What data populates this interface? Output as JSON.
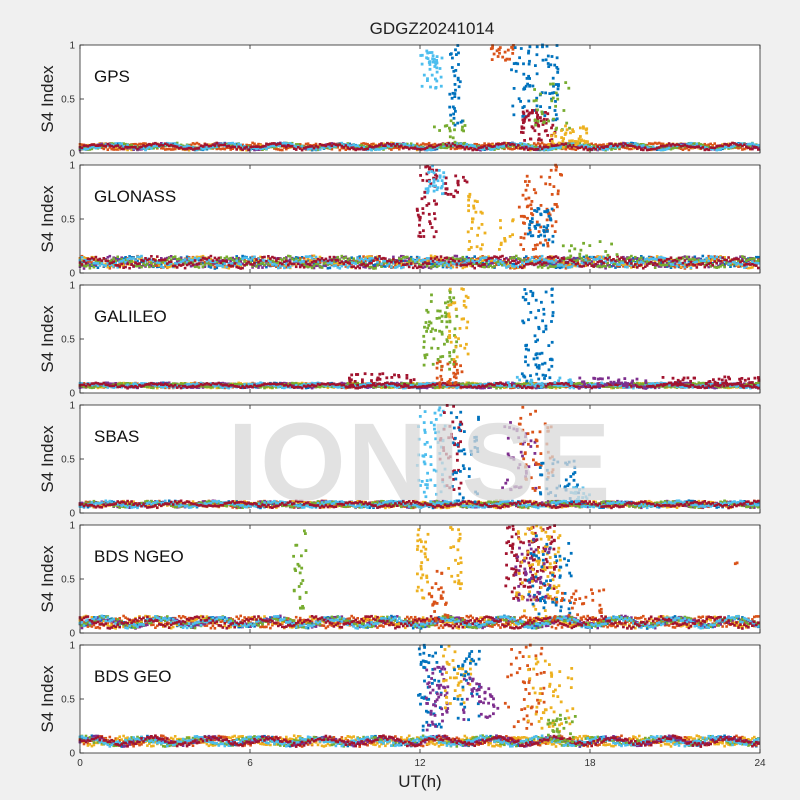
{
  "figure": {
    "title": "GDGZ20241014",
    "watermark": "IONISE",
    "xlabel": "UT(h)",
    "ylabel": "S4 Index",
    "xticks": [
      "0",
      "6",
      "12",
      "18",
      "24"
    ],
    "yticks": [
      "0",
      "0.5",
      "1"
    ]
  },
  "colors": {
    "background": "#f0f0f0",
    "axes": "#ffffff",
    "series": [
      "#0072bd",
      "#d95319",
      "#edb120",
      "#7e2f8e",
      "#77ac30",
      "#4dbeee",
      "#a2142f"
    ]
  },
  "chart_data": [
    {
      "type": "scatter",
      "label": "GPS",
      "xlim": [
        0,
        24
      ],
      "ylim": [
        0,
        1
      ],
      "baseline": {
        "mean": 0.06,
        "amp": 0.02,
        "range": [
          0,
          24
        ]
      },
      "clusters": [
        {
          "range": [
            12.0,
            12.8
          ],
          "y": [
            0.6,
            1.0
          ],
          "n": 40,
          "color": "#4dbeee"
        },
        {
          "range": [
            12.5,
            13.6
          ],
          "y": [
            0.05,
            0.3
          ],
          "n": 20,
          "color": "#77ac30"
        },
        {
          "range": [
            13.0,
            13.5
          ],
          "y": [
            0.25,
            1.0
          ],
          "n": 35,
          "color": "#0072bd"
        },
        {
          "range": [
            14.5,
            15.3
          ],
          "y": [
            0.85,
            1.0
          ],
          "n": 22,
          "color": "#d95319"
        },
        {
          "range": [
            15.2,
            16.9
          ],
          "y": [
            0.3,
            1.0
          ],
          "n": 85,
          "color": "#0072bd"
        },
        {
          "range": [
            15.5,
            16.8
          ],
          "y": [
            0.1,
            0.4
          ],
          "n": 60,
          "color": "#a2142f"
        },
        {
          "range": [
            16.0,
            17.3
          ],
          "y": [
            0.2,
            0.7
          ],
          "n": 30,
          "color": "#77ac30"
        },
        {
          "range": [
            16.5,
            18.0
          ],
          "y": [
            0.05,
            0.25
          ],
          "n": 40,
          "color": "#edb120"
        }
      ]
    },
    {
      "type": "scatter",
      "label": "GLONASS",
      "xlim": [
        0,
        24
      ],
      "ylim": [
        0,
        1
      ],
      "baseline": {
        "mean": 0.1,
        "amp": 0.035,
        "range": [
          0,
          24
        ]
      },
      "clusters": [
        {
          "range": [
            11.9,
            12.6
          ],
          "y": [
            0.3,
            1.0
          ],
          "n": 50,
          "color": "#a2142f"
        },
        {
          "range": [
            12.2,
            12.9
          ],
          "y": [
            0.65,
            1.0
          ],
          "n": 30,
          "color": "#4dbeee"
        },
        {
          "range": [
            12.9,
            13.7
          ],
          "y": [
            0.7,
            0.9
          ],
          "n": 20,
          "color": "#a2142f"
        },
        {
          "range": [
            13.7,
            14.3
          ],
          "y": [
            0.2,
            0.75
          ],
          "n": 30,
          "color": "#edb120"
        },
        {
          "range": [
            14.8,
            15.3
          ],
          "y": [
            0.2,
            0.5
          ],
          "n": 12,
          "color": "#edb120"
        },
        {
          "range": [
            15.5,
            16.9
          ],
          "y": [
            0.2,
            0.9
          ],
          "n": 70,
          "color": "#d95319"
        },
        {
          "range": [
            15.8,
            16.7
          ],
          "y": [
            0.25,
            0.6
          ],
          "n": 40,
          "color": "#0072bd"
        },
        {
          "range": [
            16.6,
            17.0
          ],
          "y": [
            0.9,
            1.0
          ],
          "n": 6,
          "color": "#d95319"
        },
        {
          "range": [
            17.0,
            19.0
          ],
          "y": [
            0.15,
            0.3
          ],
          "n": 15,
          "color": "#77ac30"
        }
      ]
    },
    {
      "type": "scatter",
      "label": "GALILEO",
      "xlim": [
        0,
        24
      ],
      "ylim": [
        0,
        1
      ],
      "baseline": {
        "mean": 0.07,
        "amp": 0.015,
        "range": [
          0,
          24
        ]
      },
      "clusters": [
        {
          "range": [
            12.1,
            13.3
          ],
          "y": [
            0.2,
            0.95
          ],
          "n": 75,
          "color": "#77ac30"
        },
        {
          "range": [
            12.6,
            13.6
          ],
          "y": [
            0.05,
            0.3
          ],
          "n": 30,
          "color": "#d95319"
        },
        {
          "range": [
            13.0,
            13.7
          ],
          "y": [
            0.3,
            1.0
          ],
          "n": 35,
          "color": "#edb120"
        },
        {
          "range": [
            15.6,
            16.7
          ],
          "y": [
            0.1,
            1.0
          ],
          "n": 75,
          "color": "#0072bd"
        },
        {
          "range": [
            9.5,
            12.0
          ],
          "y": [
            0.05,
            0.18
          ],
          "n": 40,
          "color": "#a2142f"
        },
        {
          "range": [
            17.5,
            20.0
          ],
          "y": [
            0.04,
            0.14
          ],
          "n": 40,
          "color": "#7e2f8e"
        },
        {
          "range": [
            20.5,
            24.0
          ],
          "y": [
            0.05,
            0.15
          ],
          "n": 50,
          "color": "#a2142f"
        },
        {
          "range": [
            15.0,
            18.0
          ],
          "y": [
            0.05,
            0.15
          ],
          "n": 20,
          "color": "#4dbeee"
        }
      ]
    },
    {
      "type": "scatter",
      "label": "SBAS",
      "xlim": [
        0,
        24
      ],
      "ylim": [
        0,
        1
      ],
      "baseline": {
        "mean": 0.08,
        "amp": 0.02,
        "range": [
          0,
          24
        ]
      },
      "clusters": [
        {
          "range": [
            11.9,
            12.9
          ],
          "y": [
            0.1,
            1.0
          ],
          "n": 60,
          "color": "#4dbeee"
        },
        {
          "range": [
            12.7,
            13.5
          ],
          "y": [
            0.2,
            1.0
          ],
          "n": 40,
          "color": "#a2142f"
        },
        {
          "range": [
            13.1,
            14.1
          ],
          "y": [
            0.1,
            1.0
          ],
          "n": 40,
          "color": "#0072bd"
        },
        {
          "range": [
            14.9,
            16.1
          ],
          "y": [
            0.2,
            0.9
          ],
          "n": 40,
          "color": "#7e2f8e"
        },
        {
          "range": [
            15.5,
            16.7
          ],
          "y": [
            0.2,
            1.0
          ],
          "n": 45,
          "color": "#d95319"
        },
        {
          "range": [
            16.2,
            17.6
          ],
          "y": [
            0.1,
            0.5
          ],
          "n": 40,
          "color": "#0072bd"
        },
        {
          "range": [
            17.3,
            18.0
          ],
          "y": [
            0.1,
            0.25
          ],
          "n": 20,
          "color": "#4dbeee"
        }
      ]
    },
    {
      "type": "scatter",
      "label": "BDS NGEO",
      "xlim": [
        0,
        24
      ],
      "ylim": [
        0,
        1
      ],
      "baseline": {
        "mean": 0.1,
        "amp": 0.035,
        "range": [
          0,
          24
        ]
      },
      "clusters": [
        {
          "range": [
            7.5,
            8.0
          ],
          "y": [
            0.2,
            0.95
          ],
          "n": 25,
          "color": "#77ac30"
        },
        {
          "range": [
            11.9,
            12.4
          ],
          "y": [
            0.3,
            1.0
          ],
          "n": 30,
          "color": "#edb120"
        },
        {
          "range": [
            12.3,
            13.0
          ],
          "y": [
            0.1,
            0.6
          ],
          "n": 30,
          "color": "#d95319"
        },
        {
          "range": [
            13.0,
            13.5
          ],
          "y": [
            0.4,
            1.0
          ],
          "n": 25,
          "color": "#edb120"
        },
        {
          "range": [
            15.0,
            16.8
          ],
          "y": [
            0.3,
            1.0
          ],
          "n": 120,
          "color": "#a2142f"
        },
        {
          "range": [
            15.4,
            17.0
          ],
          "y": [
            0.2,
            1.0
          ],
          "n": 90,
          "color": "#edb120"
        },
        {
          "range": [
            15.8,
            17.4
          ],
          "y": [
            0.15,
            0.9
          ],
          "n": 60,
          "color": "#0072bd"
        },
        {
          "range": [
            15.3,
            16.6
          ],
          "y": [
            0.3,
            0.9
          ],
          "n": 40,
          "color": "#7e2f8e"
        },
        {
          "range": [
            16.5,
            18.5
          ],
          "y": [
            0.1,
            0.4
          ],
          "n": 35,
          "color": "#d95319"
        },
        {
          "range": [
            23.0,
            23.5
          ],
          "y": [
            0.6,
            0.65
          ],
          "n": 2,
          "color": "#d95319"
        }
      ]
    },
    {
      "type": "scatter",
      "label": "BDS GEO",
      "xlim": [
        0,
        24
      ],
      "ylim": [
        0,
        1
      ],
      "baseline": {
        "mean": 0.11,
        "amp": 0.03,
        "range": [
          0,
          24
        ]
      },
      "clusters": [
        {
          "range": [
            11.9,
            12.8
          ],
          "y": [
            0.2,
            1.0
          ],
          "n": 50,
          "color": "#0072bd"
        },
        {
          "range": [
            12.2,
            13.0
          ],
          "y": [
            0.2,
            0.8
          ],
          "n": 50,
          "color": "#7e2f8e"
        },
        {
          "range": [
            12.8,
            13.8
          ],
          "y": [
            0.4,
            1.0
          ],
          "n": 40,
          "color": "#edb120"
        },
        {
          "range": [
            13.2,
            14.2
          ],
          "y": [
            0.3,
            0.95
          ],
          "n": 35,
          "color": "#0072bd"
        },
        {
          "range": [
            13.5,
            14.8
          ],
          "y": [
            0.3,
            0.7
          ],
          "n": 40,
          "color": "#7e2f8e"
        },
        {
          "range": [
            15.0,
            16.4
          ],
          "y": [
            0.2,
            1.0
          ],
          "n": 45,
          "color": "#d95319"
        },
        {
          "range": [
            15.8,
            17.4
          ],
          "y": [
            0.2,
            0.9
          ],
          "n": 55,
          "color": "#edb120"
        },
        {
          "range": [
            16.5,
            17.5
          ],
          "y": [
            0.1,
            0.35
          ],
          "n": 30,
          "color": "#77ac30"
        }
      ]
    }
  ]
}
